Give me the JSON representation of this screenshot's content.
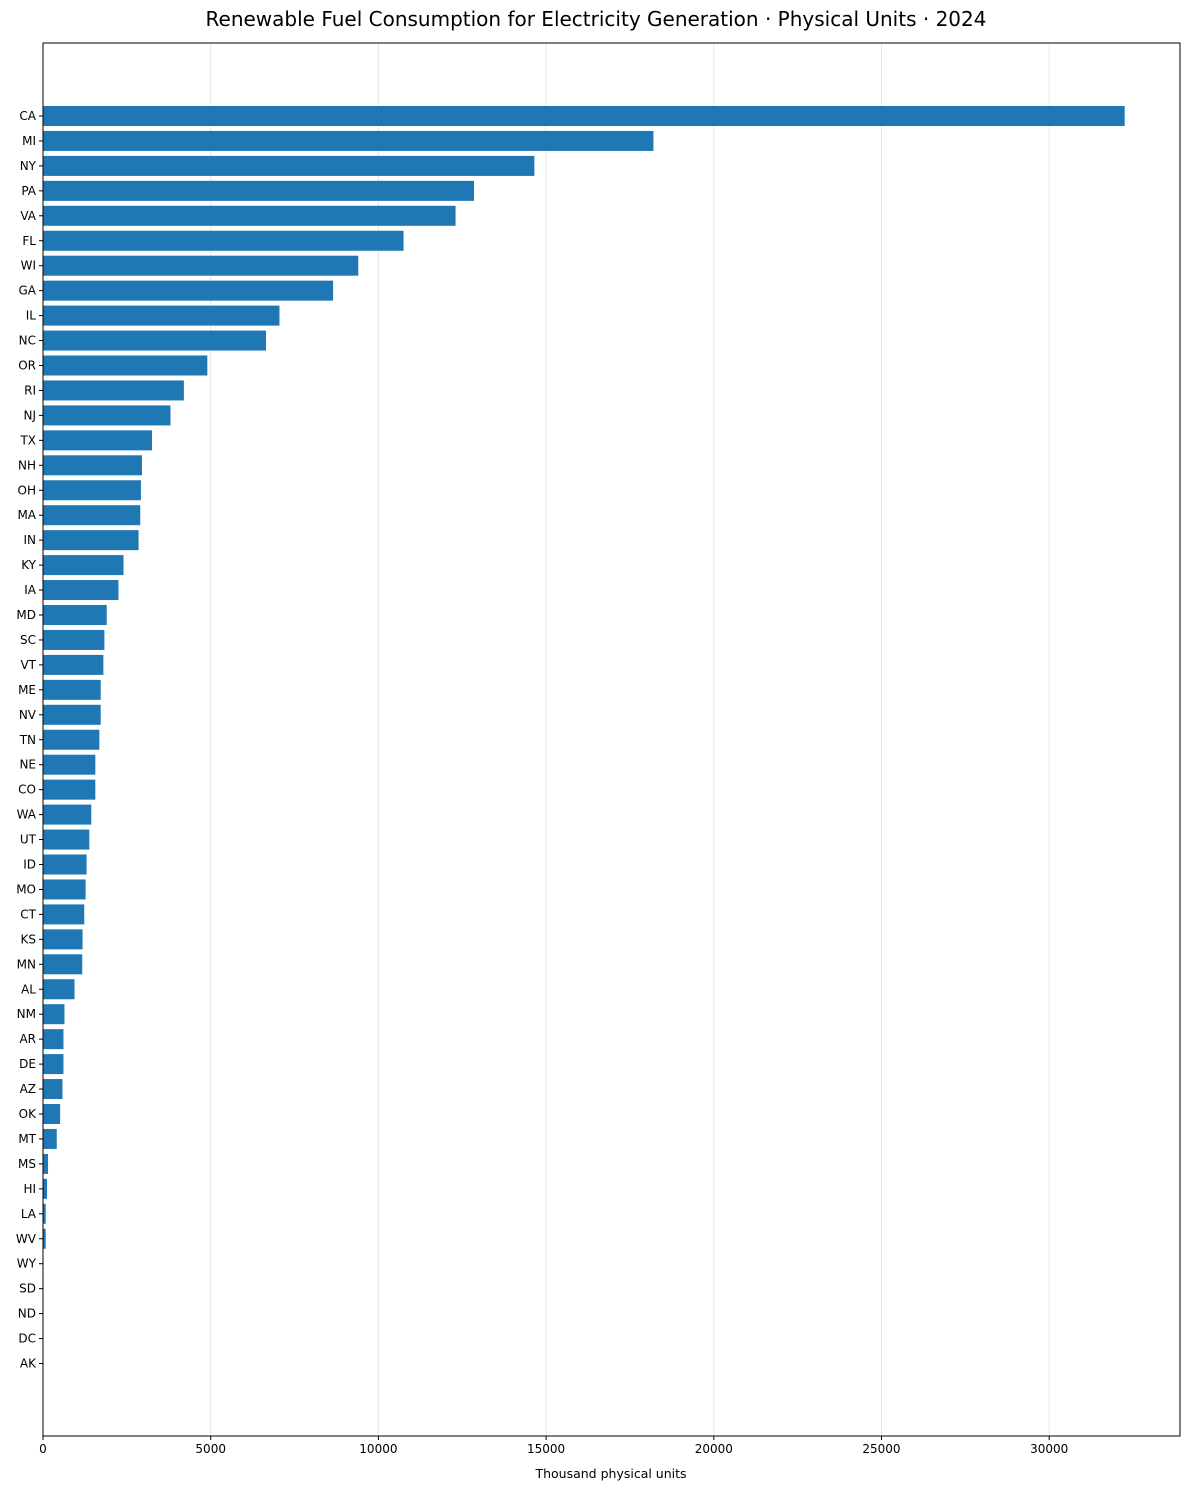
{
  "chart_data": {
    "type": "bar",
    "orientation": "horizontal",
    "title": "Renewable Fuel Consumption for Electricity Generation · Physical Units · 2024",
    "xlabel": "Thousand physical units",
    "ylabel": "",
    "xlim": [
      0,
      33900
    ],
    "xticks": [
      0,
      5000,
      10000,
      15000,
      20000,
      25000,
      30000
    ],
    "grid": "vertical",
    "bar_color": "#1f77b4",
    "categories": [
      "CA",
      "MI",
      "NY",
      "PA",
      "VA",
      "FL",
      "WI",
      "GA",
      "IL",
      "NC",
      "OR",
      "RI",
      "NJ",
      "TX",
      "NH",
      "OH",
      "MA",
      "IN",
      "KY",
      "IA",
      "MD",
      "SC",
      "VT",
      "ME",
      "NV",
      "TN",
      "NE",
      "CO",
      "WA",
      "UT",
      "ID",
      "MO",
      "CT",
      "KS",
      "MN",
      "AL",
      "NM",
      "AR",
      "DE",
      "AZ",
      "OK",
      "MT",
      "MS",
      "HI",
      "LA",
      "WV",
      "WY",
      "SD",
      "ND",
      "DC",
      "AK"
    ],
    "values": [
      32250,
      18200,
      14650,
      12850,
      12300,
      10750,
      9400,
      8650,
      7050,
      6650,
      4900,
      4200,
      3800,
      3250,
      2950,
      2920,
      2900,
      2850,
      2400,
      2250,
      1900,
      1830,
      1800,
      1720,
      1720,
      1680,
      1560,
      1560,
      1440,
      1380,
      1300,
      1270,
      1230,
      1180,
      1170,
      940,
      640,
      610,
      610,
      580,
      510,
      410,
      150,
      120,
      80,
      80,
      0,
      0,
      0,
      0,
      0
    ]
  }
}
